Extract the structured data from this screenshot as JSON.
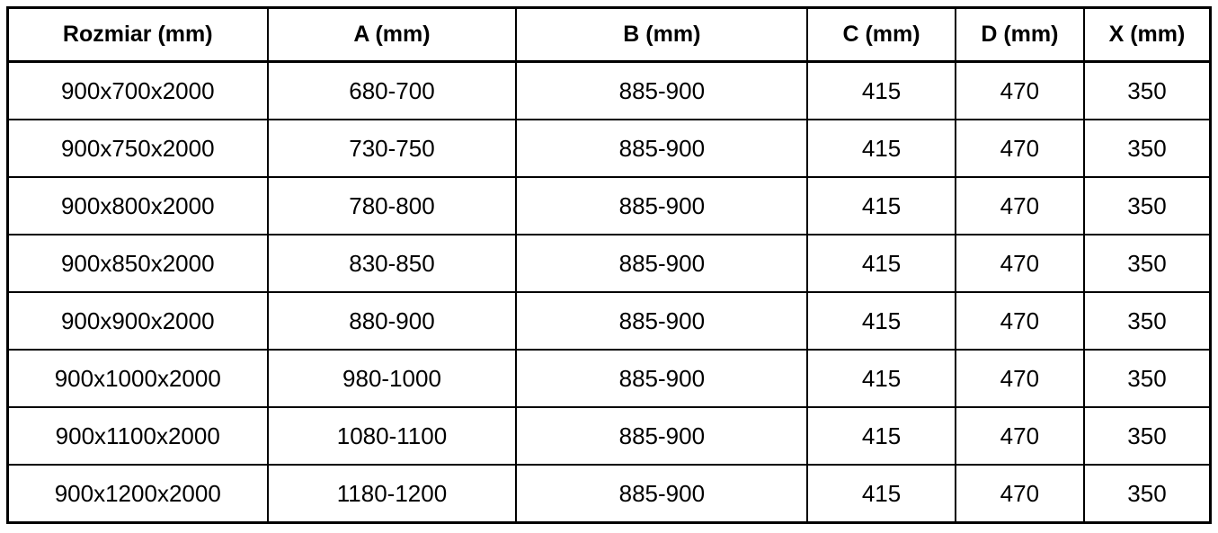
{
  "chart_data": {
    "type": "table",
    "title": "",
    "columns": [
      "Rozmiar (mm)",
      "A (mm)",
      "B (mm)",
      "C (mm)",
      "D (mm)",
      "X (mm)"
    ],
    "column_keys": [
      "rozmiar",
      "a",
      "b",
      "c",
      "d",
      "x"
    ],
    "rows": [
      [
        "900x700x2000",
        "680-700",
        "885-900",
        "415",
        "470",
        "350"
      ],
      [
        "900x750x2000",
        "730-750",
        "885-900",
        "415",
        "470",
        "350"
      ],
      [
        "900x800x2000",
        "780-800",
        "885-900",
        "415",
        "470",
        "350"
      ],
      [
        "900x850x2000",
        "830-850",
        "885-900",
        "415",
        "470",
        "350"
      ],
      [
        "900x900x2000",
        "880-900",
        "885-900",
        "415",
        "470",
        "350"
      ],
      [
        "900x1000x2000",
        "980-1000",
        "885-900",
        "415",
        "470",
        "350"
      ],
      [
        "900x1100x2000",
        "1080-1100",
        "885-900",
        "415",
        "470",
        "350"
      ],
      [
        "900x1200x2000",
        "1180-1200",
        "885-900",
        "415",
        "470",
        "350"
      ]
    ]
  },
  "colors": {
    "border": "#000000",
    "text": "#000000",
    "background": "#ffffff"
  }
}
